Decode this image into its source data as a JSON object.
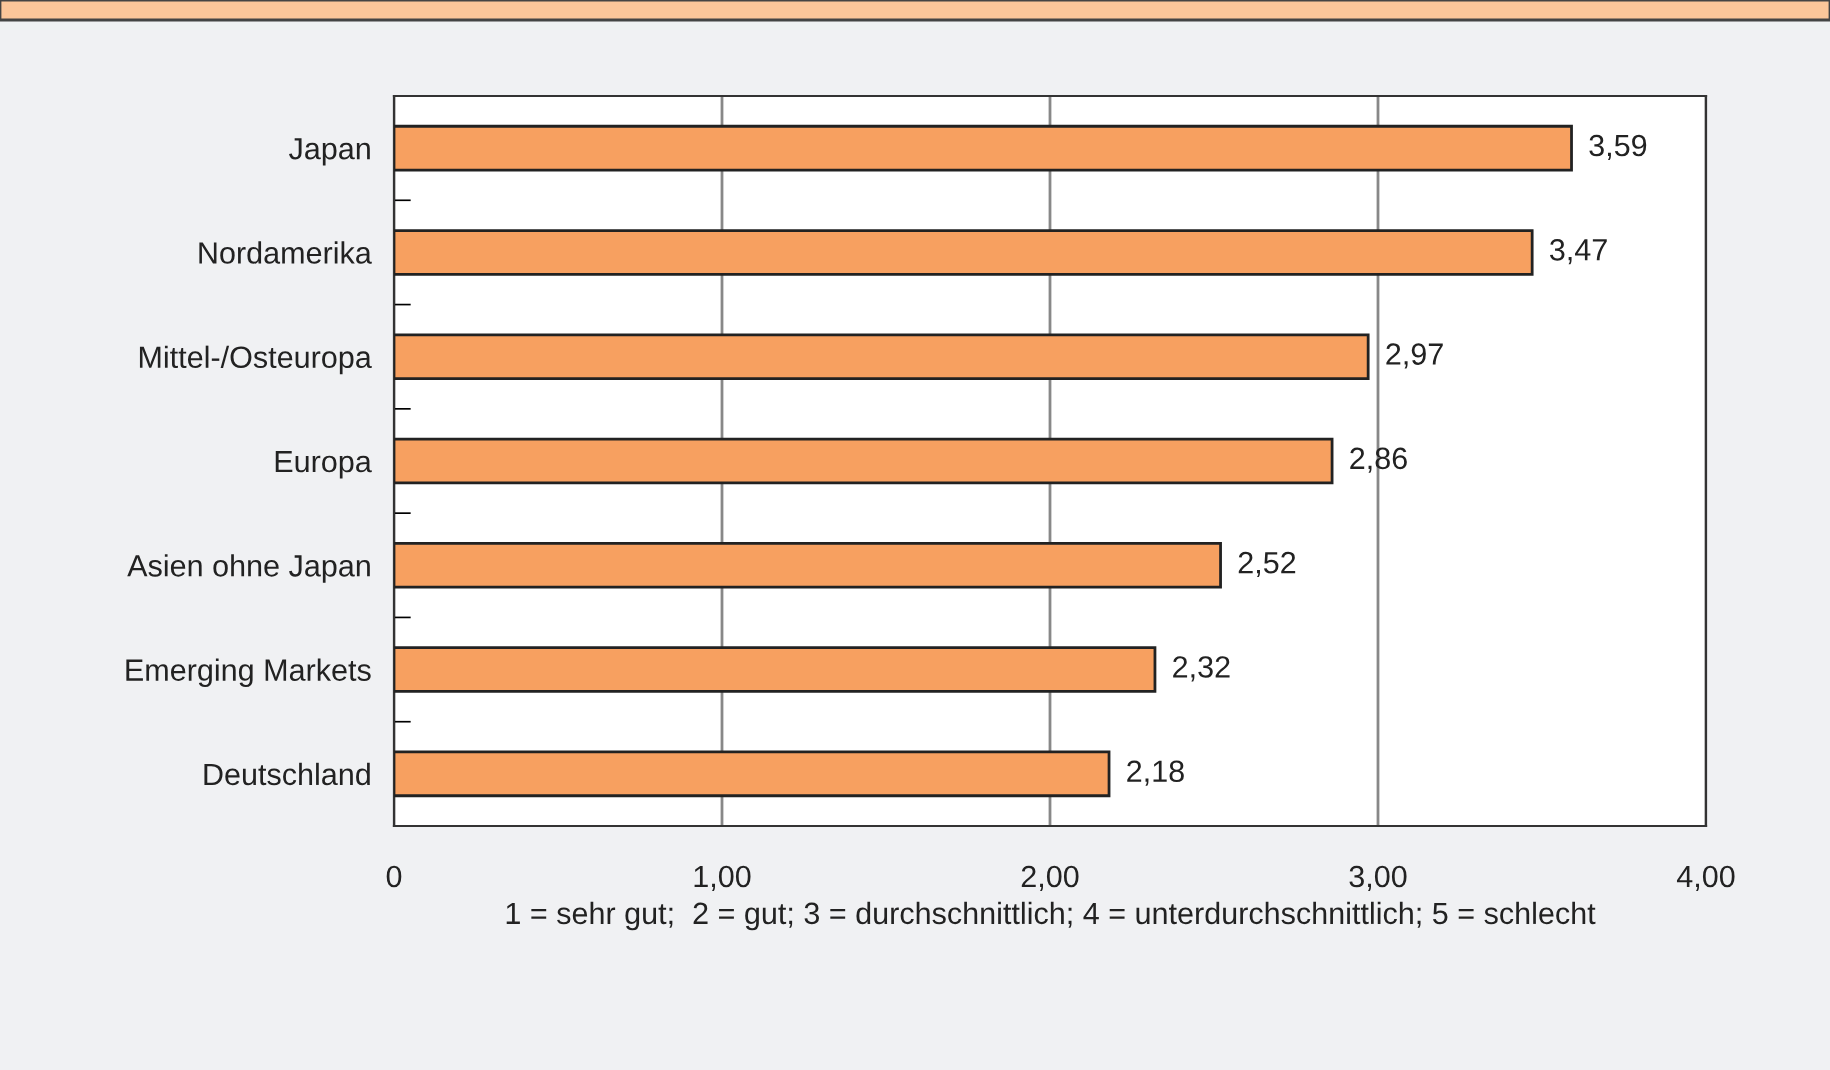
{
  "chart_data": {
    "type": "bar",
    "orientation": "horizontal",
    "categories": [
      "Japan",
      "Nordamerika",
      "Mittel-/Osteuropa",
      "Europa",
      "Asien ohne Japan",
      "Emerging Markets",
      "Deutschland"
    ],
    "values": [
      3.59,
      3.47,
      2.97,
      2.86,
      2.52,
      2.32,
      2.18
    ],
    "value_labels": [
      "3,59",
      "3,47",
      "2,97",
      "2,86",
      "2,52",
      "2,32",
      "2,18"
    ],
    "color": "#f7a060",
    "xlim": [
      0,
      4
    ],
    "xticks": [
      0,
      {
        "value": 1,
        "label": "1,00"
      },
      {
        "value": 2,
        "label": "2,00"
      },
      {
        "value": 3,
        "label": "3,00"
      },
      {
        "value": 4,
        "label": "4,00"
      }
    ],
    "grid": "x",
    "legend": false,
    "annotations": [
      "1 = sehr gut;  2 = gut; 3 = durchschnittlich; 4 = unterdurchschnittlich; 5 = schlecht"
    ]
  }
}
